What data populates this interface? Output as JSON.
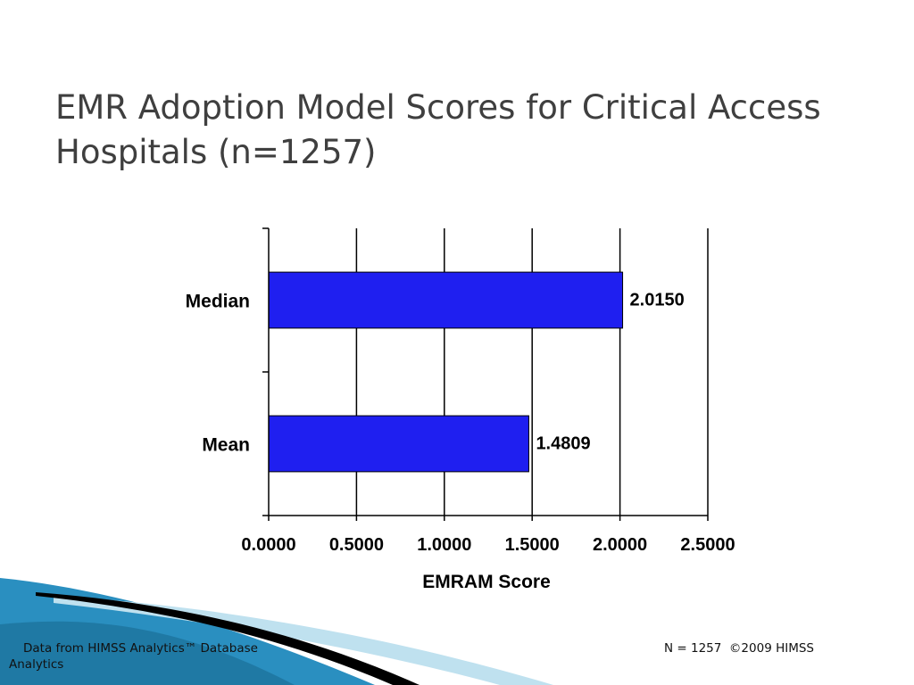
{
  "slide": {
    "title": "EMR Adoption Model Scores for Critical Access Hospitals (n=1257)"
  },
  "footer": {
    "source": "Data from HIMSS Analytics™ Database",
    "source_tail": "Analytics",
    "copyright": "N = 1257  ©2009 HIMSS"
  },
  "colors": {
    "bar": "#1f1ff0",
    "title": "#3f3f3f",
    "wave_blue": "#2a8fc0",
    "wave_light": "#bfe1ef"
  },
  "chart_data": {
    "type": "bar",
    "orientation": "horizontal",
    "categories": [
      "Median",
      "Mean"
    ],
    "values": [
      2.015,
      1.4809
    ],
    "value_labels": [
      "2.0150",
      "1.4809"
    ],
    "xlabel": "EMRAM Score",
    "ylabel": "",
    "xlim": [
      0,
      2.5
    ],
    "xticks": [
      0.0,
      0.5,
      1.0,
      1.5,
      2.0,
      2.5
    ],
    "xtick_labels": [
      "0.0000",
      "0.5000",
      "1.0000",
      "1.5000",
      "2.0000",
      "2.5000"
    ],
    "grid": "vertical"
  }
}
